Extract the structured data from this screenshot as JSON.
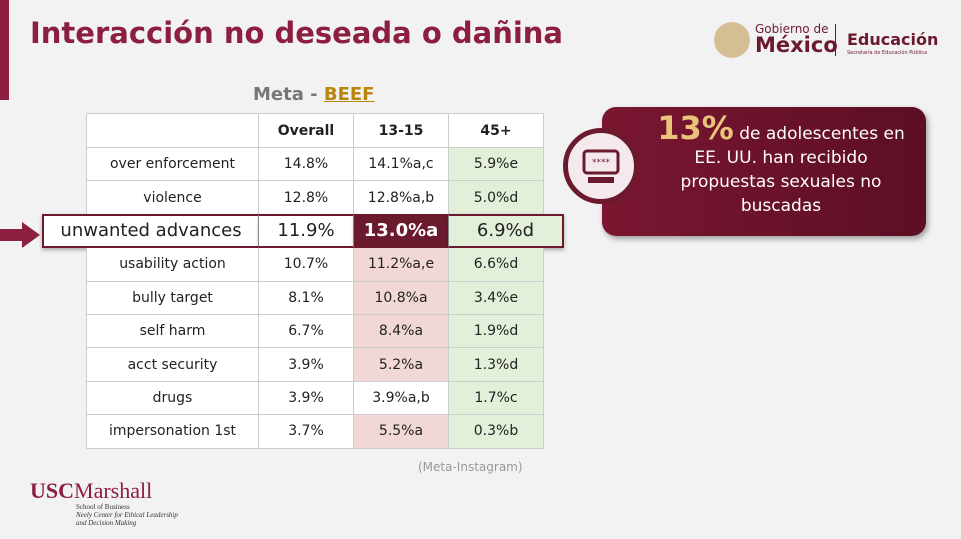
{
  "header": {
    "title": "Interacción no deseada o dañina",
    "subtitle_prefix": "Meta - ",
    "subtitle_link": "BEEF"
  },
  "logo": {
    "gov_small": "Gobierno de",
    "gov_big": "México",
    "dept": "Educación",
    "dept_sub": "Secretaría de Educación Pública"
  },
  "table": {
    "columns": [
      "Overall",
      "13-15",
      "45+"
    ],
    "rows": [
      [
        "over enforcement",
        "14.8%",
        "14.1%a,c",
        "5.9%e"
      ],
      [
        "violence",
        "12.8%",
        "12.8%a,b",
        "5.0%d"
      ],
      [
        "unwanted advances",
        "11.9%",
        "13.0%a",
        "6.9%d"
      ],
      [
        "usability action",
        "10.7%",
        "11.2%a,e",
        "6.6%d"
      ],
      [
        "bully target",
        "8.1%",
        "10.8%a",
        "3.4%e"
      ],
      [
        "self harm",
        "6.7%",
        "8.4%a",
        "1.9%d"
      ],
      [
        "acct security",
        "3.9%",
        "5.2%a",
        "1.3%d"
      ],
      [
        "drugs",
        "3.9%",
        "3.9%a,b",
        "1.7%c"
      ],
      [
        "impersonation 1st",
        "3.7%",
        "5.5%a",
        "0.3%b"
      ]
    ]
  },
  "source": "(Meta-Instagram)",
  "callout": {
    "big": "13%",
    "text": "de adolescentes en EE. UU. han recibido propuestas sexuales no buscadas"
  },
  "footer": {
    "brand_usc": "USC",
    "brand_marshall": "Marshall",
    "school": "School of Business",
    "center1": "Neely Center for Ethical Leadership",
    "center2": "and Decision Making"
  }
}
